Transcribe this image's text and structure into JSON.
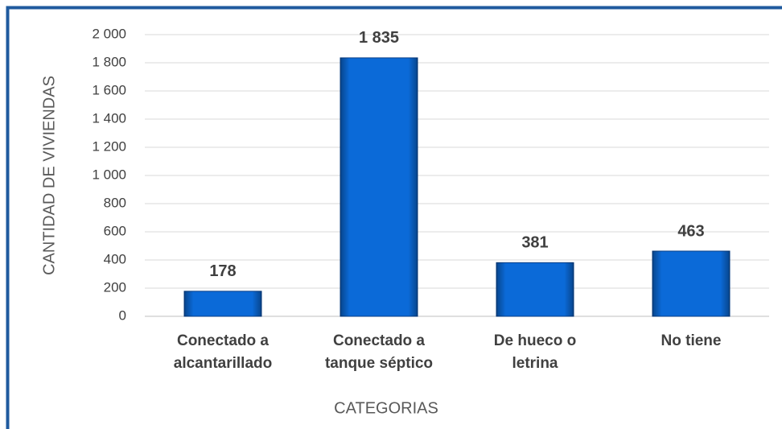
{
  "chart_data": {
    "type": "bar",
    "categories": [
      [
        "Conectado a",
        "alcantarillado"
      ],
      [
        "Conectado a",
        "tanque séptico"
      ],
      [
        "De hueco o",
        "letrina"
      ],
      [
        "No tiene"
      ]
    ],
    "values": [
      178,
      1835,
      381,
      463
    ],
    "value_labels": [
      "178",
      "1 835",
      "381",
      "463"
    ],
    "color": "#0b6ad8",
    "xlabel": "CATEGORIAS",
    "ylabel": "CANTIDAD DE VIVIENDAS",
    "ylim": [
      0,
      2000
    ],
    "yticks": [
      0,
      200,
      400,
      600,
      800,
      {
        "value": 1000,
        "label": "1 000"
      },
      {
        "value": 1200,
        "label": "1 200"
      },
      {
        "value": 1400,
        "label": "1 400"
      },
      {
        "value": 1600,
        "label": "1 600"
      },
      {
        "value": 1800,
        "label": "1 800"
      },
      {
        "value": 2000,
        "label": "2 000"
      }
    ],
    "grid": true
  }
}
